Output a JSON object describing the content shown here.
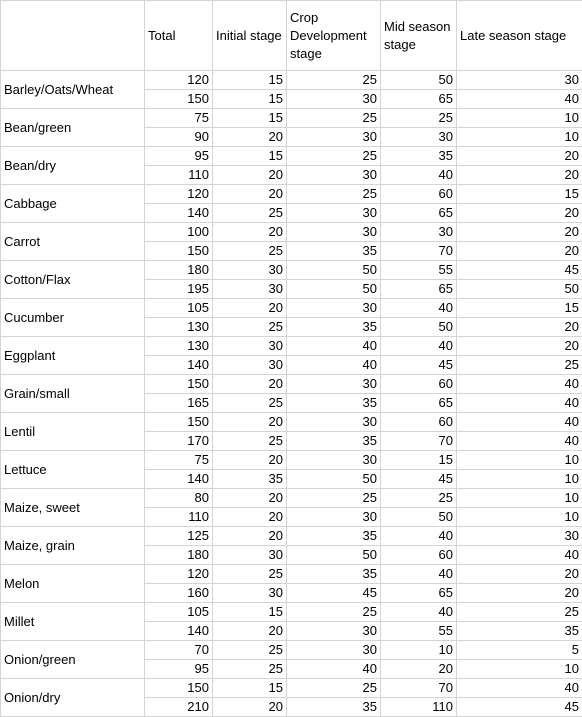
{
  "headers": {
    "crop": "",
    "total": "Total",
    "initial": "Initial stage",
    "development": "Crop Development stage",
    "mid": "Mid season stage",
    "late": "Late season stage"
  },
  "crops": [
    {
      "name": "Barley/Oats/Wheat",
      "rows": [
        [
          "120",
          "15",
          "25",
          "50",
          "30"
        ],
        [
          "150",
          "15",
          "30",
          "65",
          "40"
        ]
      ]
    },
    {
      "name": "Bean/green",
      "rows": [
        [
          "75",
          "15",
          "25",
          "25",
          "10"
        ],
        [
          "90",
          "20",
          "30",
          "30",
          "10"
        ]
      ]
    },
    {
      "name": "Bean/dry",
      "rows": [
        [
          "95",
          "15",
          "25",
          "35",
          "20"
        ],
        [
          "110",
          "20",
          "30",
          "40",
          "20"
        ]
      ]
    },
    {
      "name": "Cabbage",
      "rows": [
        [
          "120",
          "20",
          "25",
          "60",
          "15"
        ],
        [
          "140",
          "25",
          "30",
          "65",
          "20"
        ]
      ]
    },
    {
      "name": "Carrot",
      "rows": [
        [
          "100",
          "20",
          "30",
          "30",
          "20"
        ],
        [
          "150",
          "25",
          "35",
          "70",
          "20"
        ]
      ]
    },
    {
      "name": "Cotton/Flax",
      "rows": [
        [
          "180",
          "30",
          "50",
          "55",
          "45"
        ],
        [
          "195",
          "30",
          "50",
          "65",
          "50"
        ]
      ]
    },
    {
      "name": "Cucumber",
      "rows": [
        [
          "105",
          "20",
          "30",
          "40",
          "15"
        ],
        [
          "130",
          "25",
          "35",
          "50",
          "20"
        ]
      ]
    },
    {
      "name": "Eggplant",
      "rows": [
        [
          "130",
          "30",
          "40",
          "40",
          "20"
        ],
        [
          "140",
          "30",
          "40",
          "45",
          "25"
        ]
      ]
    },
    {
      "name": "Grain/small",
      "rows": [
        [
          "150",
          "20",
          "30",
          "60",
          "40"
        ],
        [
          "165",
          "25",
          "35",
          "65",
          "40"
        ]
      ]
    },
    {
      "name": "Lentil",
      "rows": [
        [
          "150",
          "20",
          "30",
          "60",
          "40"
        ],
        [
          "170",
          "25",
          "35",
          "70",
          "40"
        ]
      ]
    },
    {
      "name": "Lettuce",
      "rows": [
        [
          "75",
          "20",
          "30",
          "15",
          "10"
        ],
        [
          "140",
          "35",
          "50",
          "45",
          "10"
        ]
      ]
    },
    {
      "name": "Maize, sweet",
      "rows": [
        [
          "80",
          "20",
          "25",
          "25",
          "10"
        ],
        [
          "110",
          "20",
          "30",
          "50",
          "10"
        ]
      ]
    },
    {
      "name": "Maize, grain",
      "rows": [
        [
          "125",
          "20",
          "35",
          "40",
          "30"
        ],
        [
          "180",
          "30",
          "50",
          "60",
          "40"
        ]
      ]
    },
    {
      "name": "Melon",
      "rows": [
        [
          "120",
          "25",
          "35",
          "40",
          "20"
        ],
        [
          "160",
          "30",
          "45",
          "65",
          "20"
        ]
      ]
    },
    {
      "name": "Millet",
      "rows": [
        [
          "105",
          "15",
          "25",
          "40",
          "25"
        ],
        [
          "140",
          "20",
          "30",
          "55",
          "35"
        ]
      ]
    },
    {
      "name": "Onion/green",
      "rows": [
        [
          "70",
          "25",
          "30",
          "10",
          "5"
        ],
        [
          "95",
          "25",
          "40",
          "20",
          "10"
        ]
      ]
    },
    {
      "name": "Onion/dry",
      "rows": [
        [
          "150",
          "15",
          "25",
          "70",
          "40"
        ],
        [
          "210",
          "20",
          "35",
          "110",
          "45"
        ]
      ]
    }
  ]
}
